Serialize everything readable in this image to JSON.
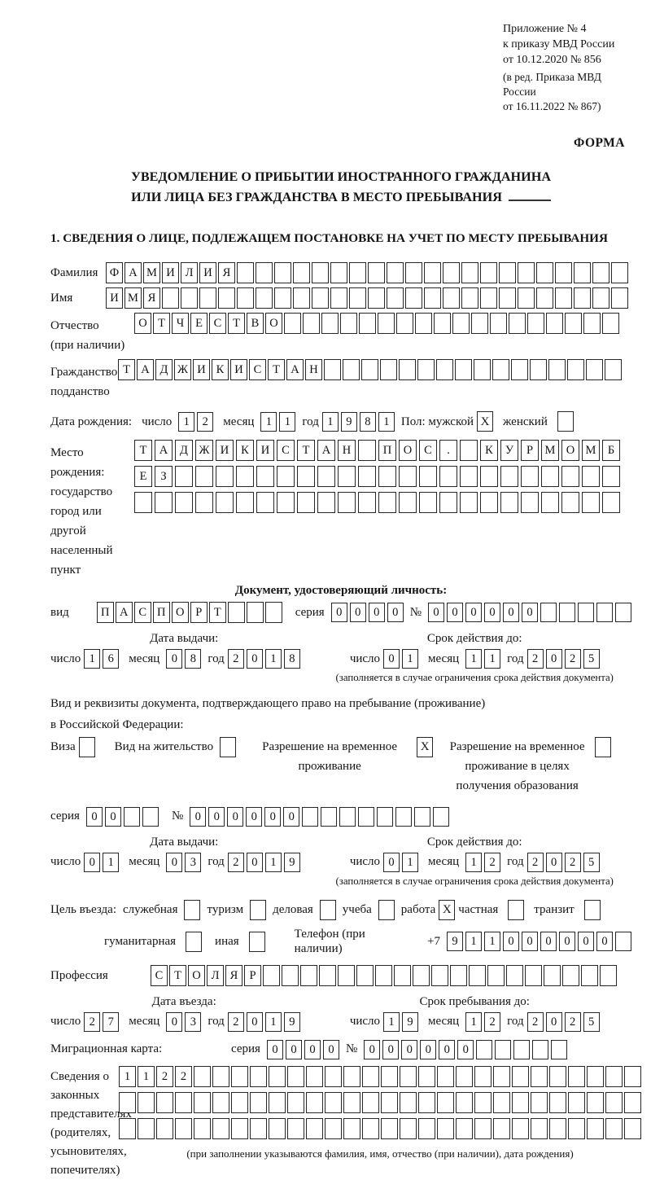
{
  "header": {
    "appendix_lines": [
      "Приложение № 4",
      "к приказу МВД России",
      "от 10.12.2020 № 856"
    ],
    "revision_lines": [
      "(в ред. Приказа МВД России",
      "от 16.11.2022 № 867)"
    ],
    "form_label": "ФОРМА"
  },
  "title": {
    "line1": "УВЕДОМЛЕНИЕ О ПРИБЫТИИ ИНОСТРАННОГО ГРАЖДАНИНА",
    "line2": "ИЛИ ЛИЦА БЕЗ ГРАЖДАНСТВА В МЕСТО ПРЕБЫВАНИЯ"
  },
  "section_heading": "1. СВЕДЕНИЯ О ЛИЦЕ, ПОДЛЕЖАЩЕМ ПОСТАНОВКЕ НА УЧЕТ ПО МЕСТУ ПРЕБЫВАНИЯ",
  "labels": {
    "day": "число",
    "month": "месяц",
    "year": "год",
    "series": "серия",
    "number": "№"
  },
  "fields": {
    "surname": {
      "label": "Фамилия",
      "value": "ФАМИЛИЯ",
      "length": 28
    },
    "name": {
      "label": "Имя",
      "value": "ИМЯ",
      "length": 28
    },
    "patronymic": {
      "label1": "Отчество",
      "label2": "(при наличии)",
      "value": "ОТЧЕСТВО",
      "length": 26
    },
    "citizenship": {
      "label1": "Гражданство,",
      "label2": "подданство",
      "value": "ТАДЖИКИСТАН",
      "length": 27
    },
    "birth_date": {
      "label": "Дата рождения:",
      "day": "12",
      "month": "11",
      "year": "1981",
      "gender_label": "Пол: мужской",
      "male": "X",
      "female_label": "женский",
      "female": ""
    },
    "birth_place": {
      "labels": [
        "Место рождения:",
        "государство",
        "город или другой",
        "населенный пункт"
      ],
      "rows": [
        {
          "value": "ТАДЖИКИСТАН ПОС. КУРМОМБ",
          "length": 24
        },
        {
          "value": "ЕЗ",
          "length": 24
        },
        {
          "value": "",
          "length": 24
        }
      ]
    },
    "identity_doc": {
      "heading": "Документ, удостоверяющий личность:",
      "type_label": "вид",
      "type": {
        "value": "ПАСПОРТ",
        "length": 10
      },
      "series": {
        "value": "0000",
        "length": 4
      },
      "number": {
        "value": "000000",
        "length": 11
      },
      "issue": {
        "heading": "Дата выдачи:",
        "day": "16",
        "month": "08",
        "year": "2018"
      },
      "expiry": {
        "heading": "Срок действия до:",
        "day": "01",
        "month": "11",
        "year": "2025"
      },
      "note": "(заполняется в случае ограничения срока действия документа)"
    },
    "residence_doc": {
      "intro1": "Вид и реквизиты документа, подтверждающего право на пребывание (проживание)",
      "intro2": "в Российской Федерации:",
      "options": [
        {
          "label": "Виза",
          "checked": ""
        },
        {
          "label": "Вид на жительство",
          "checked": ""
        },
        {
          "label": "Разрешение на временное проживание",
          "checked": "X"
        },
        {
          "label": "Разрешение на временное проживание в целях получения образования",
          "checked": ""
        }
      ],
      "series": {
        "value": "00",
        "length": 4
      },
      "number": {
        "value": "000000",
        "length": 14
      },
      "issue": {
        "heading": "Дата выдачи:",
        "day": "01",
        "month": "03",
        "year": "2019"
      },
      "expiry": {
        "heading": "Срок действия до:",
        "day": "01",
        "month": "12",
        "year": "2025"
      },
      "note": "(заполняется в случае ограничения срока действия документа)"
    },
    "visit_purpose": {
      "label": "Цель въезда:",
      "options": [
        {
          "label": "служебная",
          "checked": ""
        },
        {
          "label": "туризм",
          "checked": ""
        },
        {
          "label": "деловая",
          "checked": ""
        },
        {
          "label": "учеба",
          "checked": ""
        },
        {
          "label": "работа",
          "checked": "X"
        },
        {
          "label": "частная",
          "checked": ""
        },
        {
          "label": "транзит",
          "checked": ""
        }
      ],
      "options2": [
        {
          "label": "гуманитарная",
          "checked": ""
        },
        {
          "label": "иная",
          "checked": ""
        }
      ],
      "phone_label": "Телефон (при наличии)",
      "phone_prefix": "+7",
      "phone": {
        "value": "911000000",
        "length": 10
      }
    },
    "profession": {
      "label": "Профессия",
      "value": "СТОЛЯР",
      "length": 25
    },
    "entry": {
      "heading": "Дата въезда:",
      "day": "27",
      "month": "03",
      "year": "2019"
    },
    "stay_until": {
      "heading": "Срок пребывания до:",
      "day": "19",
      "month": "12",
      "year": "2025"
    },
    "migration_card": {
      "label": "Миграционная карта:",
      "series": {
        "value": "0000",
        "length": 4
      },
      "number": {
        "value": "000000",
        "length": 11
      }
    },
    "legal_representatives": {
      "labels": [
        "Сведения о",
        "законных",
        "представителях",
        "(родителях,",
        "усыновителях,",
        "попечителях)"
      ],
      "rows": [
        {
          "value": "1122",
          "length": 28
        },
        {
          "value": "",
          "length": 28
        },
        {
          "value": "",
          "length": 28
        }
      ],
      "note": "(при заполнении указываются фамилия, имя, отчество (при наличии), дата рождения)"
    }
  }
}
